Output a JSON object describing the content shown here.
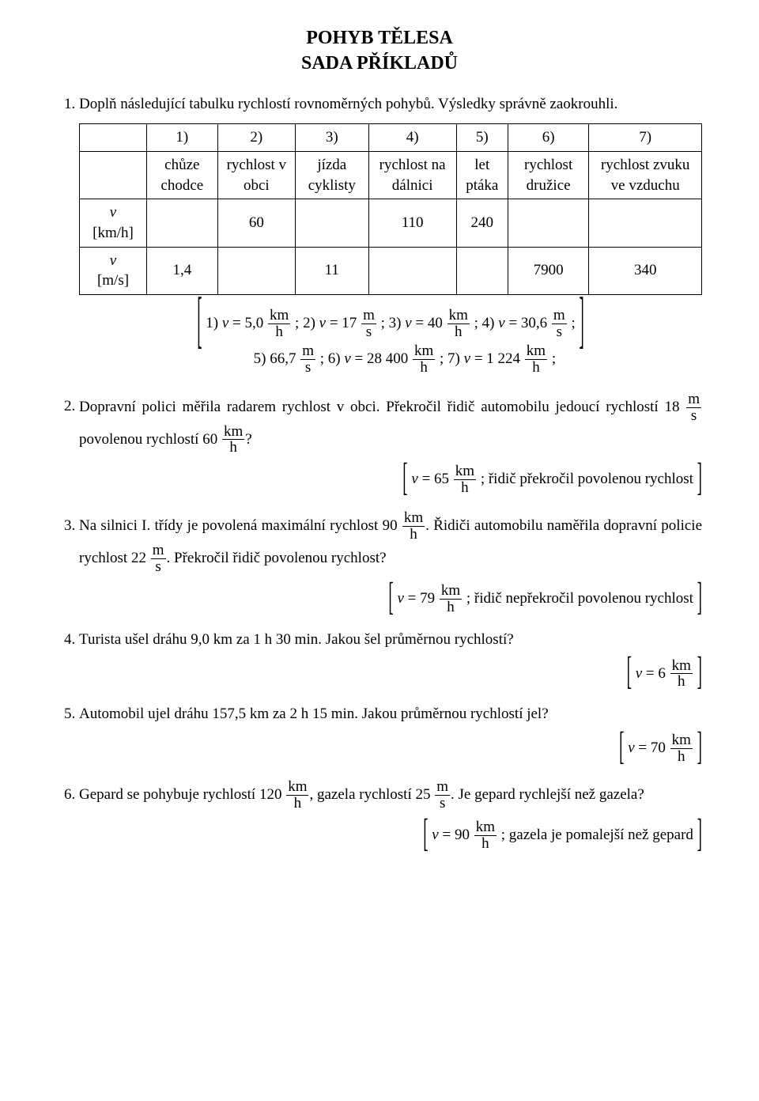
{
  "title": "POHYB TĚLESA",
  "subtitle": "SADA PŘÍKLADŮ",
  "p1": {
    "text": "Doplň následující tabulku rychlostí rovnoměrných pohybů. Výsledky správně zaokrouhli.",
    "table": {
      "col_nums": [
        "1)",
        "2)",
        "3)",
        "4)",
        "5)",
        "6)",
        "7)"
      ],
      "col_labels": [
        "chůze chodce",
        "rychlost v obci",
        "jízda cyklisty",
        "rychlost na dálnici",
        "let ptáka",
        "rychlost družice",
        "rychlost zvuku ve vzduchu"
      ],
      "row1_head": {
        "sym": "v",
        "unit": "[km/h]"
      },
      "row2_head": {
        "sym": "v",
        "unit": "[m/s]"
      },
      "row1": [
        "",
        "60",
        "",
        "110",
        "240",
        "",
        ""
      ],
      "row2": [
        "1,4",
        "",
        "11",
        "",
        "",
        "7900",
        "340"
      ]
    },
    "answers": {
      "line1": {
        "a1": "1) ",
        "a1b": " = 5,0 ",
        "u1n": "km",
        "u1d": "h",
        "a2": " ; 2) ",
        "a2b": " = 17 ",
        "u2n": "m",
        "u2d": "s",
        "a3": " ; 3) ",
        "a3b": " = 40 ",
        "u3n": "km",
        "u3d": "h",
        "a4": " ; 4) ",
        "a4b": " = 30,6 ",
        "u4n": "m",
        "u4d": "s",
        "a4c": " ;"
      },
      "line2": {
        "a5": "5) 66,7 ",
        "u5n": "m",
        "u5d": "s",
        "a6": " ;  6) ",
        "a6b": " = 28 400 ",
        "u6n": "km",
        "u6d": "h",
        "a7": " ; 7) ",
        "a7b": " = 1 224 ",
        "u7n": "km",
        "u7d": "h",
        "a7c": " ;"
      }
    }
  },
  "p2": {
    "text1": "Dopravní polici měřila radarem rychlost v obci. Překročil řidič automobilu jedoucí rychlostí 18 ",
    "f1n": "m",
    "f1d": "s",
    "text2": " povolenou rychlostí 60 ",
    "f2n": "km",
    "f2d": "h",
    "text3": "?",
    "ans": {
      "pre": " = 65 ",
      "un": "km",
      "ud": "h",
      "post": " ; řidič překročil povolenou rychlost"
    }
  },
  "p3": {
    "text1": "Na silnici I. třídy je povolená maximální rychlost 90 ",
    "f1n": "km",
    "f1d": "h",
    "text2": ". Řidiči automobilu naměřila dopravní policie rychlost 22 ",
    "f2n": "m",
    "f2d": "s",
    "text3": ". Překročil řidič povolenou rychlost?",
    "ans": {
      "pre": " = 79 ",
      "un": "km",
      "ud": "h",
      "post": " ; řidič nepřekročil povolenou rychlost"
    }
  },
  "p4": {
    "text": "Turista ušel dráhu 9,0 km za 1 h 30 min. Jakou šel průměrnou rychlostí?",
    "ans": {
      "pre": " = 6 ",
      "un": "km",
      "ud": "h"
    }
  },
  "p5": {
    "text": "Automobil ujel dráhu 157,5 km za 2 h 15 min. Jakou průměrnou rychlostí jel?",
    "ans": {
      "pre": " = 70 ",
      "un": "km",
      "ud": "h"
    }
  },
  "p6": {
    "text1": "Gepard se pohybuje rychlostí 120 ",
    "f1n": "km",
    "f1d": "h",
    "text2": ", gazela rychlostí 25 ",
    "f2n": "m",
    "f2d": "s",
    "text3": ". Je gepard rychlejší než gazela?",
    "ans": {
      "pre": " = 90 ",
      "un": "km",
      "ud": "h",
      "post": " ; gazela je pomalejší než gepard"
    }
  },
  "v": "v"
}
